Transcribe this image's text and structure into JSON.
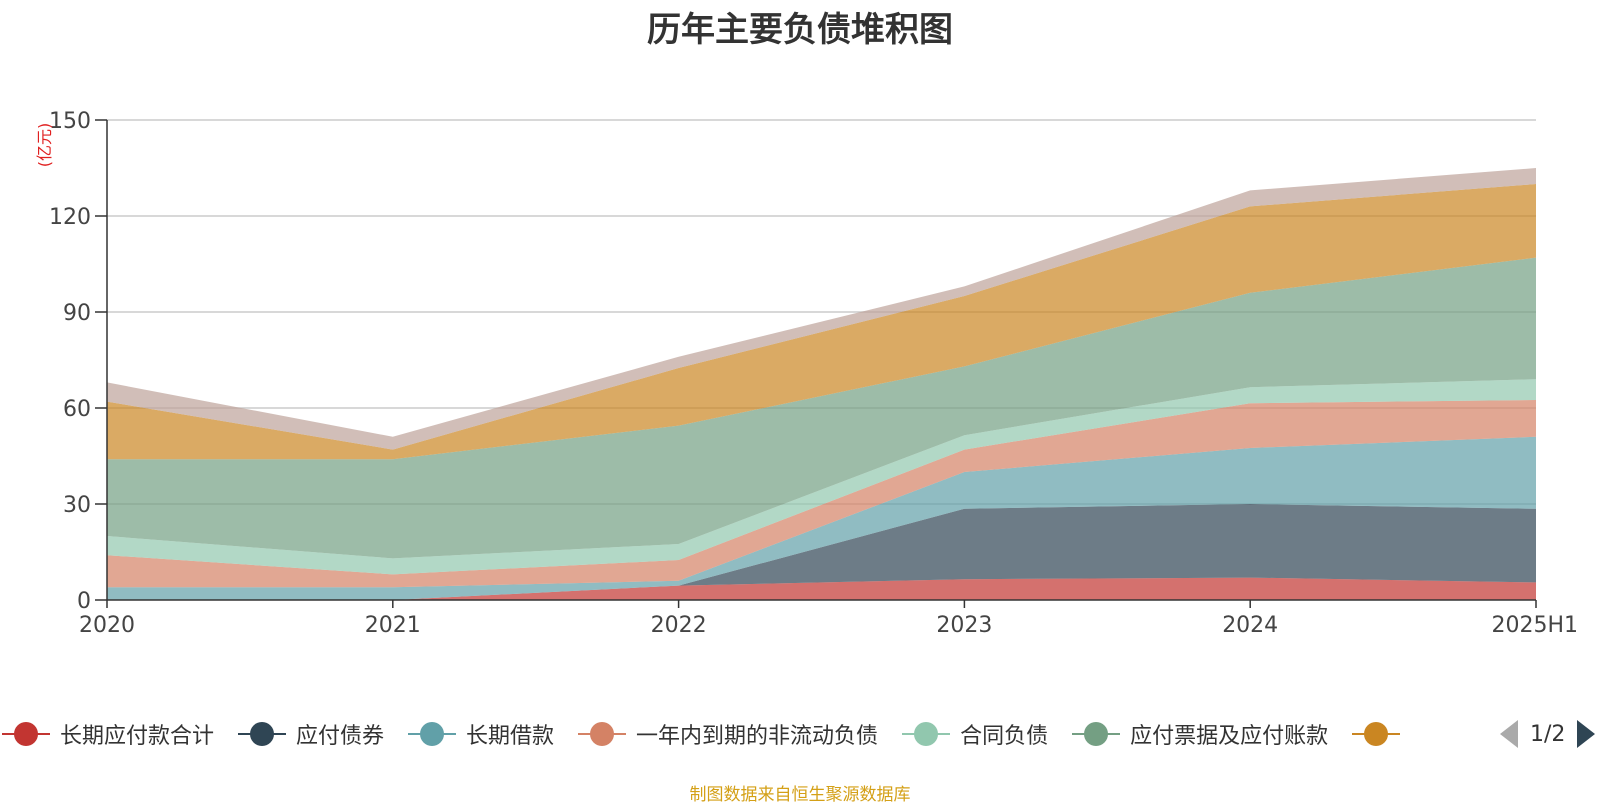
{
  "chart_data": {
    "type": "area",
    "stacked": true,
    "title": "历年主要负债堆积图",
    "ylabel": "(亿元)",
    "xlabel": "",
    "categories": [
      "2020",
      "2021",
      "2022",
      "2023",
      "2024",
      "2025H1"
    ],
    "ylim": [
      0,
      150
    ],
    "yticks": [
      0,
      30,
      60,
      90,
      120,
      150
    ],
    "grid": true,
    "legend_position": "bottom",
    "series": [
      {
        "name": "长期应付款合计",
        "color": "#c23531",
        "values": [
          0,
          0,
          4.5,
          6.5,
          7.0,
          5.5
        ]
      },
      {
        "name": "应付债券",
        "color": "#2f4554",
        "values": [
          0,
          0,
          0,
          22,
          23,
          23
        ]
      },
      {
        "name": "长期借款",
        "color": "#61a0a8",
        "values": [
          4,
          4,
          1.5,
          11.5,
          17.5,
          22.5
        ]
      },
      {
        "name": "一年内到期的非流动负债",
        "color": "#d48265",
        "values": [
          10,
          4,
          6.5,
          7,
          14,
          11.5
        ]
      },
      {
        "name": "合同负债",
        "color": "#91c7ae",
        "values": [
          6,
          5,
          5,
          4.5,
          5,
          6.5
        ]
      },
      {
        "name": "应付票据及应付账款",
        "color": "#749f83",
        "values": [
          24,
          31,
          37,
          21.5,
          29.5,
          38
        ]
      },
      {
        "name": "",
        "color": "#ca8622",
        "values": [
          18,
          3,
          18,
          22,
          27,
          23
        ]
      },
      {
        "name": "",
        "color": "#bda29a",
        "values": [
          6,
          4,
          3.5,
          3,
          5,
          5
        ]
      }
    ]
  },
  "legend": {
    "visible_count": 7,
    "page_text": "1/2"
  },
  "source_note": "制图数据来自恒生聚源数据库"
}
